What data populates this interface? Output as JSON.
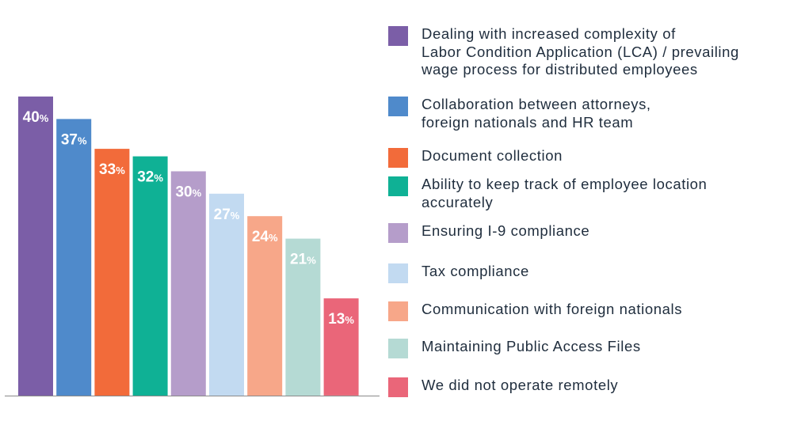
{
  "chart_data": {
    "type": "bar",
    "categories": [
      "Dealing with increased complexity of Labor Condition Application (LCA) / prevailing wage process for distributed employees",
      "Collaboration between attorneys, foreign nationals and HR team",
      "Document collection",
      "Ability to keep track of employee location accurately",
      "Ensuring I-9 compliance",
      "Tax compliance",
      "Communication with foreign nationals",
      "Maintaining Public Access Files",
      "We did not operate remotely"
    ],
    "legend_lines": [
      [
        "Dealing with increased complexity of",
        "Labor Condition Application (LCA) / prevailing",
        "wage process for distributed employees"
      ],
      [
        "Collaboration between attorneys,",
        "foreign nationals and HR team"
      ],
      [
        "Document collection"
      ],
      [
        "Ability to keep track of employee location",
        "accurately"
      ],
      [
        "Ensuring I-9 compliance"
      ],
      [
        "Tax compliance"
      ],
      [
        "Communication with foreign nationals"
      ],
      [
        "Maintaining Public Access Files"
      ],
      [
        "We did not operate remotely"
      ]
    ],
    "values": [
      40,
      37,
      33,
      32,
      30,
      27,
      24,
      21,
      13
    ],
    "value_suffix": "%",
    "colors": [
      "#7b5ea7",
      "#4f8acb",
      "#f26b3a",
      "#0fb195",
      "#b59dca",
      "#c2daf1",
      "#f7a789",
      "#b5dad4",
      "#ea6679"
    ],
    "ylim": [
      0,
      40
    ],
    "legend_position": "right",
    "grid": false,
    "title": "",
    "xlabel": "",
    "ylabel": ""
  }
}
